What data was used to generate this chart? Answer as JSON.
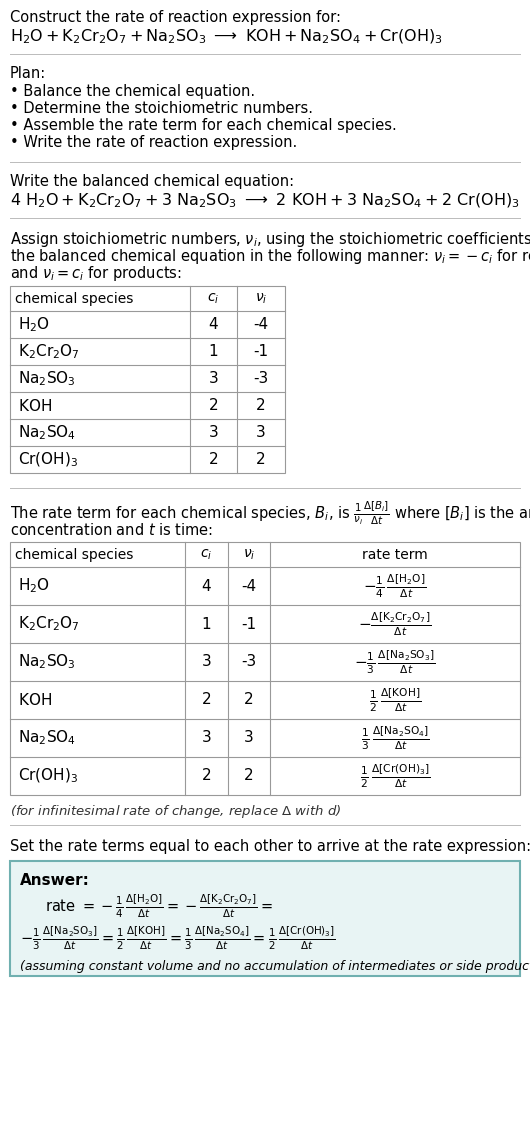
{
  "title_line1": "Construct the rate of reaction expression for:",
  "plan_header": "Plan:",
  "plan_items": [
    "• Balance the chemical equation.",
    "• Determine the stoichiometric numbers.",
    "• Assemble the rate term for each chemical species.",
    "• Write the rate of reaction expression."
  ],
  "balanced_header": "Write the balanced chemical equation:",
  "answer_intro": "Set the rate terms equal to each other to arrive at the rate expression:",
  "answer_label": "Answer:",
  "answer_box_color": "#e8f4f4",
  "answer_box_border": "#70b0b0",
  "answer_note": "(assuming constant volume and no accumulation of intermediates or side products)",
  "bg_color": "#ffffff",
  "text_color": "#000000",
  "table_border_color": "#999999",
  "section_line_color": "#cccccc",
  "ci_vals": [
    "4",
    "1",
    "3",
    "2",
    "3",
    "2"
  ],
  "vi_vals": [
    "-4",
    "-1",
    "-3",
    "2",
    "3",
    "2"
  ]
}
